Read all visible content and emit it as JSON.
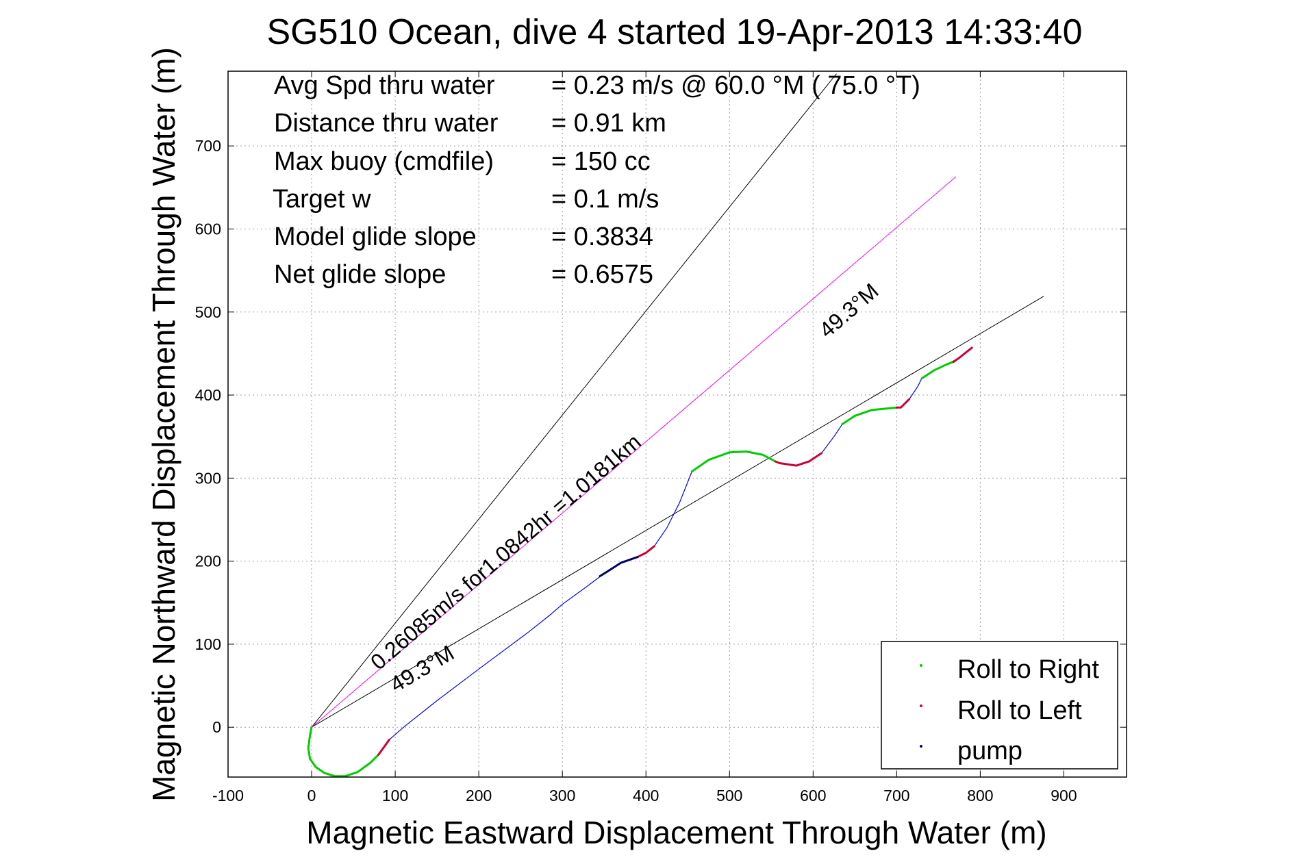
{
  "chart_data": {
    "type": "line",
    "title": "SG510 Ocean, dive 4 started 19-Apr-2013 14:33:40",
    "xlabel": "Magnetic Eastward Displacement Through Water (m)",
    "ylabel": "Magnetic Northward Displacement Through Water (m)",
    "xlim": [
      -100,
      975
    ],
    "ylim": [
      -60,
      790
    ],
    "xticks": [
      -100,
      0,
      100,
      200,
      300,
      400,
      500,
      600,
      700,
      800,
      900
    ],
    "yticks": [
      0,
      100,
      200,
      300,
      400,
      500,
      600,
      700
    ],
    "grid": true,
    "legend_position": "bottom-right",
    "stats": [
      {
        "label": "Avg Spd thru water",
        "value": "=  0.23 m/s @  60.0 °M ( 75.0 °T)"
      },
      {
        "label": "Distance thru water",
        "value": "=  0.91 km"
      },
      {
        "label": "Max buoy (cmdfile)",
        "value": "= 150 cc"
      },
      {
        "label": "Target w",
        "value": "= 0.1 m/s"
      },
      {
        "label": "Model glide slope",
        "value": "= 0.3834"
      },
      {
        "label": "Net glide slope",
        "value": "= 0.6575"
      }
    ],
    "annotations": {
      "current": "0.26085m/s for1.0842hr =1.0181km",
      "lower_heading": "49.3°M",
      "upper_heading": "49.3°M"
    },
    "reference_lines": [
      {
        "from": [
          0,
          0
        ],
        "to": [
          628,
          787
        ],
        "color": "#000000"
      },
      {
        "from": [
          0,
          0
        ],
        "to": [
          876,
          519
        ],
        "color": "#000000"
      },
      {
        "from": [
          0,
          0
        ],
        "to": [
          771,
          663
        ],
        "color": "#ff00ff"
      }
    ],
    "track": [
      [
        0,
        0
      ],
      [
        -2,
        -10
      ],
      [
        -4,
        -25
      ],
      [
        -2,
        -38
      ],
      [
        5,
        -48
      ],
      [
        15,
        -55
      ],
      [
        28,
        -59
      ],
      [
        40,
        -59
      ],
      [
        55,
        -54
      ],
      [
        70,
        -43
      ],
      [
        80,
        -33
      ],
      [
        88,
        -22
      ],
      [
        93,
        -15
      ],
      [
        110,
        0
      ],
      [
        150,
        32
      ],
      [
        200,
        70
      ],
      [
        260,
        115
      ],
      [
        285,
        135
      ],
      [
        300,
        148
      ],
      [
        330,
        170
      ],
      [
        350,
        185
      ],
      [
        370,
        198
      ],
      [
        390,
        205
      ],
      [
        400,
        210
      ],
      [
        410,
        218
      ],
      [
        425,
        240
      ],
      [
        440,
        270
      ],
      [
        455,
        308
      ],
      [
        475,
        322
      ],
      [
        500,
        331
      ],
      [
        520,
        332
      ],
      [
        540,
        328
      ],
      [
        560,
        318
      ],
      [
        580,
        315
      ],
      [
        595,
        320
      ],
      [
        610,
        330
      ],
      [
        625,
        350
      ],
      [
        635,
        365
      ],
      [
        650,
        375
      ],
      [
        670,
        382
      ],
      [
        690,
        384
      ],
      [
        705,
        385
      ],
      [
        715,
        395
      ],
      [
        725,
        410
      ],
      [
        730,
        420
      ],
      [
        745,
        430
      ],
      [
        760,
        437
      ],
      [
        775,
        445
      ],
      [
        790,
        457
      ]
    ],
    "series": [
      {
        "name": "Roll to Right",
        "color": "#00cc00",
        "segments": [
          [
            [
              0,
              0
            ],
            [
              -2,
              -10
            ],
            [
              -4,
              -25
            ],
            [
              -2,
              -38
            ],
            [
              5,
              -48
            ],
            [
              15,
              -55
            ],
            [
              28,
              -59
            ],
            [
              40,
              -59
            ],
            [
              55,
              -54
            ],
            [
              70,
              -43
            ],
            [
              80,
              -33
            ]
          ],
          [
            [
              455,
              308
            ],
            [
              475,
              322
            ],
            [
              500,
              331
            ],
            [
              520,
              332
            ],
            [
              540,
              328
            ],
            [
              555,
              320
            ]
          ],
          [
            [
              635,
              365
            ],
            [
              650,
              375
            ],
            [
              670,
              382
            ],
            [
              690,
              384
            ],
            [
              700,
              385
            ]
          ],
          [
            [
              730,
              420
            ],
            [
              745,
              430
            ],
            [
              760,
              437
            ],
            [
              768,
              440
            ]
          ]
        ]
      },
      {
        "name": "Roll to Left",
        "color": "#cc0033",
        "segments": [
          [
            [
              80,
              -33
            ],
            [
              88,
              -22
            ],
            [
              93,
              -15
            ]
          ],
          [
            [
              390,
              205
            ],
            [
              400,
              210
            ],
            [
              410,
              218
            ]
          ],
          [
            [
              555,
              320
            ],
            [
              560,
              318
            ],
            [
              580,
              315
            ],
            [
              595,
              320
            ],
            [
              610,
              330
            ]
          ],
          [
            [
              700,
              385
            ],
            [
              705,
              385
            ],
            [
              715,
              395
            ]
          ],
          [
            [
              768,
              440
            ],
            [
              775,
              445
            ],
            [
              790,
              457
            ]
          ]
        ]
      },
      {
        "name": "pump",
        "color": "#000066",
        "segments": [
          [
            [
              345,
              182
            ],
            [
              350,
              185
            ],
            [
              370,
              198
            ],
            [
              390,
              205
            ]
          ]
        ]
      }
    ]
  }
}
